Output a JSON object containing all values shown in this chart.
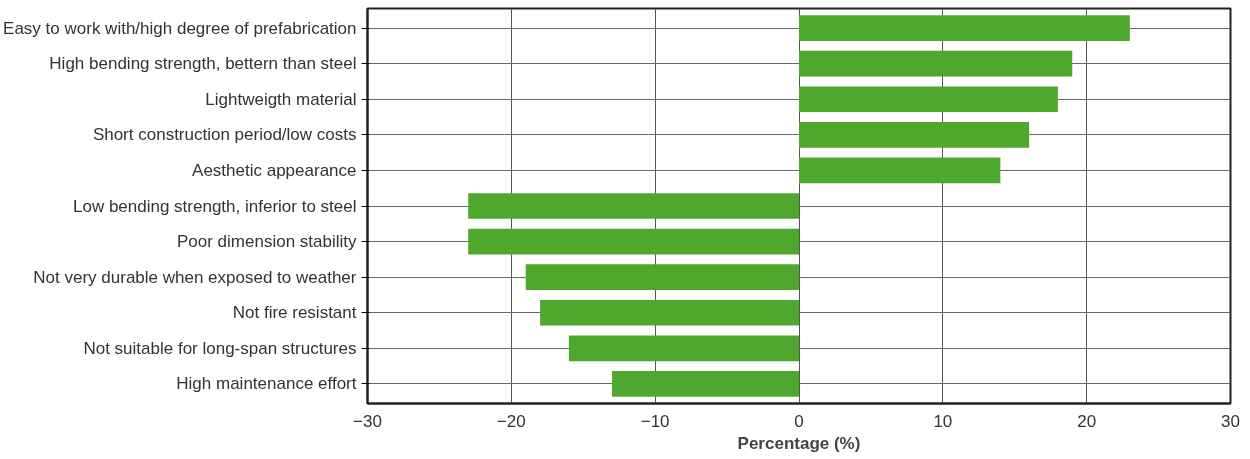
{
  "chart_data": {
    "type": "bar",
    "orientation": "horizontal",
    "xlabel": "Percentage (%)",
    "categories": [
      "Easy to work with/high degree of prefabrication",
      "High bending strength, bettern than steel",
      "Lightweigth material",
      "Short construction period/low costs",
      "Aesthetic appearance",
      "Low bending strength, inferior to steel",
      "Poor dimension stability",
      "Not very durable when exposed to weather",
      "Not fire resistant",
      "Not suitable for long-span structures",
      "High maintenance effort"
    ],
    "values": [
      23,
      19,
      18,
      16,
      14,
      -23,
      -23,
      -19,
      -18,
      -16,
      -13
    ],
    "color": "#4fa82e",
    "xlim": [
      -30,
      30
    ],
    "xticks": [
      -30,
      -20,
      -10,
      0,
      10,
      20,
      30
    ],
    "grid": true
  }
}
